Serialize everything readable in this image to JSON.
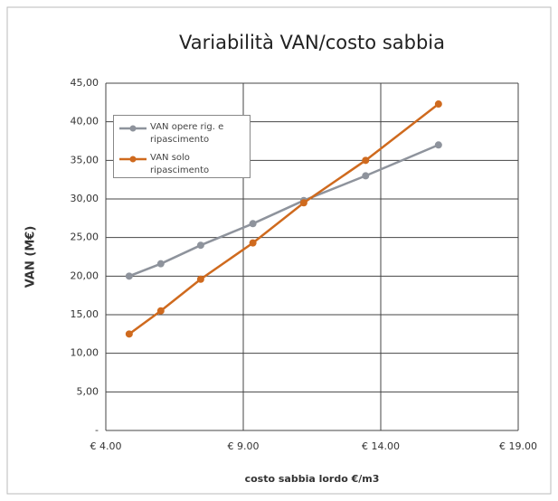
{
  "chart_data": {
    "type": "line",
    "title": "Variabilità  VAN/costo sabbia",
    "xlabel": "costo sabbia lordo  €/m3",
    "ylabel": "VAN (M€)",
    "x": [
      4.85,
      6.0,
      7.45,
      9.35,
      11.2,
      13.45,
      16.1
    ],
    "series": [
      {
        "name": "VAN opere rig.  e ripascimento",
        "color": "#8e939c",
        "values": [
          20.0,
          21.6,
          24.0,
          26.8,
          29.8,
          33.0,
          37.0
        ]
      },
      {
        "name": "VAN solo ripascimento",
        "color": "#cf6a1e",
        "values": [
          12.5,
          15.5,
          19.6,
          24.3,
          29.5,
          35.0,
          42.3
        ]
      }
    ],
    "xlim": [
      4,
      19
    ],
    "xticks": [
      {
        "value": 4,
        "label": "€ 4.00"
      },
      {
        "value": 9,
        "label": "€ 9.00"
      },
      {
        "value": 14,
        "label": "€ 14.00"
      },
      {
        "value": 19,
        "label": "€ 19.00"
      }
    ],
    "ylim": [
      0,
      45
    ],
    "yticks": [
      {
        "value": 0,
        "label": "-"
      },
      {
        "value": 5,
        "label": "5,00"
      },
      {
        "value": 10,
        "label": "10,00"
      },
      {
        "value": 15,
        "label": "15,00"
      },
      {
        "value": 20,
        "label": "20,00"
      },
      {
        "value": 25,
        "label": "25,00"
      },
      {
        "value": 30,
        "label": "30,00"
      },
      {
        "value": 35,
        "label": "35,00"
      },
      {
        "value": 40,
        "label": "40,00"
      },
      {
        "value": 45,
        "label": "45,00"
      }
    ],
    "grid": true,
    "legend": "upper left"
  }
}
